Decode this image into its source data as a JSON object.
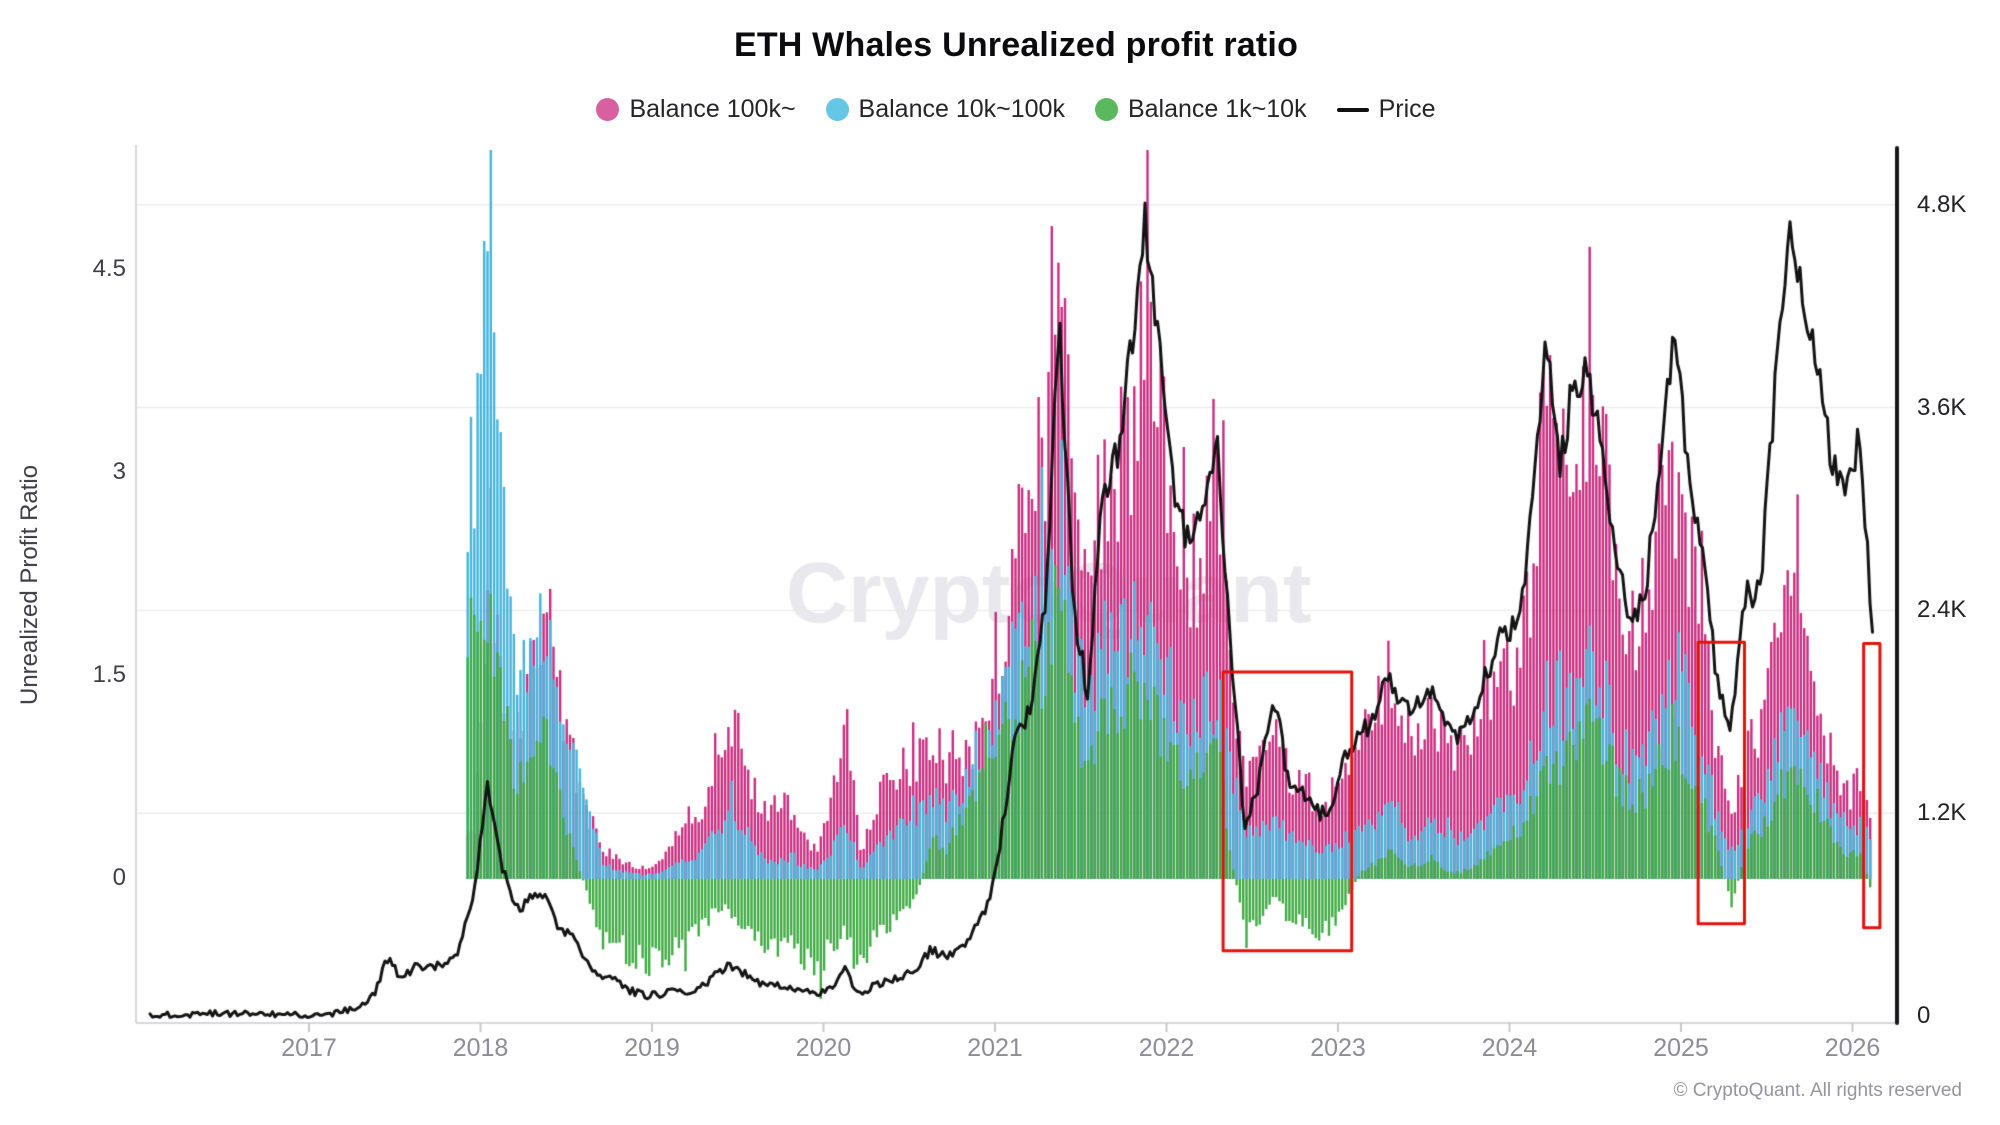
{
  "title": "ETH Whales Unrealized profit ratio",
  "watermark": "CryptoQuant",
  "copyright": "© CryptoQuant. All rights reserved",
  "legend": [
    {
      "label": "Balance 100k~",
      "swatch": "dot",
      "color": "#d85fa0"
    },
    {
      "label": "Balance 10k~100k",
      "swatch": "dot",
      "color": "#66c6e6"
    },
    {
      "label": "Balance 1k~10k",
      "swatch": "dot",
      "color": "#5cb85f"
    },
    {
      "label": "Price",
      "swatch": "dash",
      "color": "#101010"
    }
  ],
  "left_axis": {
    "title": "Unrealized Profit Ratio",
    "ticks": [
      {
        "label": "4.5",
        "value": 4.5
      },
      {
        "label": "3",
        "value": 3
      },
      {
        "label": "1.5",
        "value": 1.5
      },
      {
        "label": "0",
        "value": 0
      }
    ]
  },
  "right_axis": {
    "ticks": [
      {
        "label": "4.8K",
        "value": 4800
      },
      {
        "label": "3.6K",
        "value": 3600
      },
      {
        "label": "2.4K",
        "value": 2400
      },
      {
        "label": "1.2K",
        "value": 1200
      },
      {
        "label": "0",
        "value": 0
      }
    ]
  },
  "x_axis": {
    "ticks": [
      {
        "label": "2017",
        "value": 2017
      },
      {
        "label": "2018",
        "value": 2018
      },
      {
        "label": "2019",
        "value": 2019
      },
      {
        "label": "2020",
        "value": 2020
      },
      {
        "label": "2021",
        "value": 2021
      },
      {
        "label": "2022",
        "value": 2022
      },
      {
        "label": "2023",
        "value": 2023
      },
      {
        "label": "2024",
        "value": 2024
      },
      {
        "label": "2025",
        "value": 2025
      },
      {
        "label": "2026",
        "value": 2026
      }
    ]
  },
  "chart_data": {
    "type": "bar",
    "subtype": "overlapping-bars-with-line",
    "title": "ETH Whales Unrealized profit ratio",
    "ylabel_left": "Unrealized Profit Ratio",
    "ylim_left": [
      -1.1,
      5.4
    ],
    "ylim_right": [
      0,
      5200
    ],
    "xlim_years": [
      2016.0,
      2026.25
    ],
    "grid": "horizontal",
    "legend_position": "top-center",
    "bars_start_month": "2017-12",
    "bars_monthly_resolution": true,
    "series": [
      {
        "name": "Balance 100k~",
        "type": "bar",
        "axis": "left",
        "color": "#cb2d80",
        "start_month": "2017-12",
        "values": [
          0.35,
          2.6,
          1.3,
          0.85,
          1.55,
          1.95,
          1.35,
          0.85,
          0.45,
          0.22,
          0.15,
          0.1,
          0.06,
          0.12,
          0.32,
          0.45,
          0.55,
          0.95,
          1.22,
          0.85,
          0.55,
          0.48,
          0.55,
          0.35,
          0.18,
          0.55,
          1.15,
          0.18,
          0.55,
          0.7,
          0.8,
          0.85,
          1.05,
          0.8,
          0.85,
          1.0,
          1.2,
          1.55,
          2.5,
          2.6,
          3.3,
          5.0,
          2.6,
          2.0,
          3.0,
          3.1,
          3.3,
          3.9,
          3.3,
          2.4,
          2.1,
          2.5,
          2.85,
          1.5,
          0.78,
          0.82,
          1.1,
          0.78,
          0.72,
          0.55,
          0.62,
          0.82,
          0.95,
          1.25,
          1.5,
          1.1,
          1.0,
          1.18,
          1.0,
          0.95,
          1.1,
          1.3,
          1.5,
          1.55,
          2.2,
          3.6,
          3.0,
          3.2,
          3.5,
          3.0,
          2.2,
          1.9,
          2.0,
          2.5,
          2.9,
          2.4,
          1.8,
          0.9,
          0.5,
          0.95,
          1.05,
          1.6,
          2.15,
          1.7,
          1.35,
          0.85,
          0.6,
          0.75,
          0.4
        ]
      },
      {
        "name": "Balance 10k~100k",
        "type": "bar",
        "axis": "left",
        "color": "#45b5dc",
        "start_month": "2017-12",
        "values": [
          2.9,
          4.5,
          2.6,
          1.5,
          1.7,
          1.85,
          1.3,
          0.9,
          0.5,
          0.12,
          0.06,
          0.05,
          0.03,
          0.05,
          0.1,
          0.15,
          0.2,
          0.38,
          0.5,
          0.35,
          0.15,
          0.12,
          0.15,
          0.1,
          0.06,
          0.2,
          0.45,
          0.06,
          0.2,
          0.3,
          0.4,
          0.45,
          0.6,
          0.5,
          0.6,
          0.8,
          1.0,
          1.35,
          1.8,
          1.9,
          2.2,
          2.4,
          1.6,
          1.3,
          1.8,
          1.7,
          1.8,
          2.0,
          1.7,
          1.3,
          1.1,
          1.25,
          1.35,
          0.8,
          0.32,
          0.35,
          0.5,
          0.3,
          0.28,
          0.2,
          0.22,
          0.3,
          0.35,
          0.45,
          0.5,
          0.35,
          0.32,
          0.4,
          0.3,
          0.3,
          0.35,
          0.45,
          0.55,
          0.55,
          0.9,
          1.4,
          1.2,
          1.4,
          1.65,
          1.4,
          1.0,
          0.85,
          0.9,
          1.2,
          1.55,
          1.3,
          0.9,
          0.45,
          0.2,
          0.45,
          0.55,
          0.9,
          1.2,
          1.0,
          0.85,
          0.5,
          0.35,
          0.4,
          0.2
        ]
      },
      {
        "name": "Balance 1k~10k",
        "type": "bar",
        "axis": "left",
        "color": "#3fab43",
        "start_month": "2017-12",
        "values": [
          1.9,
          2.0,
          1.2,
          0.7,
          0.9,
          1.0,
          0.55,
          0.2,
          -0.15,
          -0.45,
          -0.5,
          -0.55,
          -0.6,
          -0.6,
          -0.5,
          -0.45,
          -0.35,
          -0.2,
          -0.25,
          -0.35,
          -0.45,
          -0.5,
          -0.45,
          -0.55,
          -0.65,
          -0.5,
          -0.35,
          -0.7,
          -0.45,
          -0.35,
          -0.25,
          -0.1,
          0.3,
          0.2,
          0.35,
          0.6,
          0.85,
          1.05,
          1.3,
          1.4,
          1.6,
          2.1,
          1.05,
          0.85,
          1.25,
          1.2,
          1.25,
          1.4,
          1.1,
          0.85,
          0.7,
          0.85,
          0.95,
          0.1,
          -0.35,
          -0.3,
          -0.1,
          -0.3,
          -0.25,
          -0.4,
          -0.35,
          -0.15,
          0.05,
          0.12,
          0.2,
          0.1,
          0.1,
          0.15,
          0.05,
          0.05,
          0.1,
          0.2,
          0.3,
          0.3,
          0.55,
          0.9,
          0.8,
          0.95,
          1.25,
          1.0,
          0.7,
          0.6,
          0.65,
          0.85,
          1.0,
          0.8,
          0.55,
          0.2,
          -0.2,
          0.25,
          0.35,
          0.6,
          0.8,
          0.65,
          0.55,
          0.3,
          0.15,
          0.2,
          -0.2
        ]
      },
      {
        "name": "Price",
        "type": "line",
        "axis": "right",
        "color": "#141414",
        "start_month": "2016-01",
        "values": [
          2,
          6,
          11,
          9,
          12,
          14,
          11,
          11,
          13,
          12,
          10,
          8,
          10,
          13,
          35,
          50,
          120,
          340,
          220,
          300,
          290,
          300,
          400,
          720,
          1350,
          870,
          620,
          690,
          700,
          520,
          460,
          300,
          230,
          210,
          150,
          120,
          130,
          140,
          140,
          170,
          250,
          300,
          250,
          200,
          180,
          180,
          150,
          130,
          160,
          270,
          130,
          180,
          210,
          230,
          280,
          390,
          360,
          380,
          500,
          650,
          1100,
          1700,
          1800,
          2400,
          4100,
          2400,
          1900,
          3100,
          3300,
          3900,
          4750,
          3900,
          3100,
          2800,
          3000,
          3400,
          2200,
          1100,
          1400,
          1900,
          1400,
          1350,
          1200,
          1200,
          1550,
          1650,
          1750,
          2000,
          1850,
          1850,
          1900,
          1700,
          1650,
          1800,
          2050,
          2300,
          2300,
          2900,
          4000,
          3250,
          3750,
          3800,
          3350,
          2650,
          2350,
          2500,
          3300,
          4000,
          3300,
          2700,
          2000,
          1700,
          2500,
          2500,
          3600,
          4700,
          4250,
          3900,
          3300,
          3050,
          3450,
          2150
        ]
      }
    ],
    "highlight_boxes": [
      {
        "color": "#e2120c",
        "t_from": 2022.33,
        "t_to": 2023.08,
        "v_from": -0.53,
        "v_to": 1.53
      },
      {
        "color": "#e2120c",
        "t_from": 2025.1,
        "t_to": 2025.37,
        "v_from": -0.33,
        "v_to": 1.75
      },
      {
        "color": "#e2120c",
        "t_from": 2026.065,
        "t_to": 2026.16,
        "v_from": -0.36,
        "v_to": 1.74
      }
    ]
  }
}
